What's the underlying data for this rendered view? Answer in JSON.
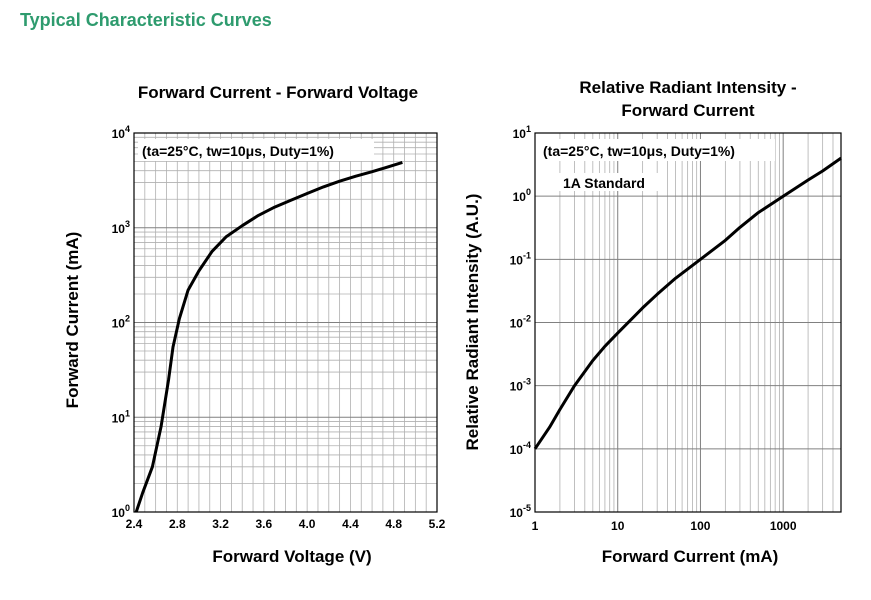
{
  "page": {
    "heading": "Typical Characteristic Curves"
  },
  "chart_data": [
    {
      "type": "line",
      "title": "Forward Current - Forward Voltage",
      "xlabel": "Forward Voltage (V)",
      "ylabel": "Forward Current (mA)",
      "xscale": "linear",
      "yscale": "log",
      "xlim": [
        2.4,
        5.2
      ],
      "ylim": [
        1,
        10000
      ],
      "grid": true,
      "annotation": "(ta=25°C, tw=10μs, Duty=1%)",
      "x_ticks": [
        "2.4",
        "2.8",
        "3.2",
        "3.6",
        "4.0",
        "4.4",
        "4.8",
        "5.2"
      ],
      "y_ticks": [
        {
          "base": "10",
          "exp": "0"
        },
        {
          "base": "10",
          "exp": "1"
        },
        {
          "base": "10",
          "exp": "2"
        },
        {
          "base": "10",
          "exp": "3"
        },
        {
          "base": "10",
          "exp": "4"
        }
      ],
      "series": [
        {
          "x": [
            2.42,
            2.48,
            2.57,
            2.65,
            2.72,
            2.76,
            2.82,
            2.9,
            3.0,
            3.12,
            3.25,
            3.4,
            3.55,
            3.7,
            3.85,
            4.0,
            4.15,
            4.3,
            4.45,
            4.6,
            4.75,
            4.88
          ],
          "y": [
            1,
            1.6,
            3,
            8,
            25,
            55,
            110,
            220,
            350,
            560,
            800,
            1050,
            1350,
            1650,
            1950,
            2300,
            2700,
            3100,
            3500,
            3900,
            4400,
            4900
          ]
        }
      ]
    },
    {
      "type": "line",
      "title": "Relative Radiant Intensity - Forward Current",
      "xlabel": "Forward Current (mA)",
      "ylabel": "Relative Radiant Intensity (A.U.)",
      "xscale": "log",
      "yscale": "log",
      "xlim": [
        1,
        5000
      ],
      "ylim": [
        1e-05,
        10
      ],
      "grid": true,
      "annotation": "(ta=25°C, tw=10μs, Duty=1%)",
      "annotation2": "1A Standard",
      "x_ticks": [
        "1",
        "10",
        "100",
        "1000"
      ],
      "y_ticks": [
        {
          "base": "10",
          "exp": "-5"
        },
        {
          "base": "10",
          "exp": "-4"
        },
        {
          "base": "10",
          "exp": "-3"
        },
        {
          "base": "10",
          "exp": "-2"
        },
        {
          "base": "10",
          "exp": "-1"
        },
        {
          "base": "10",
          "exp": "0"
        },
        {
          "base": "10",
          "exp": "1"
        }
      ],
      "series": [
        {
          "x": [
            1,
            1.5,
            2,
            3,
            5,
            7,
            10,
            20,
            30,
            50,
            100,
            200,
            300,
            500,
            1000,
            2000,
            3000,
            5000
          ],
          "y": [
            0.0001,
            0.00022,
            0.00042,
            0.001,
            0.0025,
            0.0042,
            0.0068,
            0.017,
            0.028,
            0.05,
            0.1,
            0.2,
            0.32,
            0.55,
            1,
            1.8,
            2.5,
            4
          ]
        }
      ]
    }
  ]
}
